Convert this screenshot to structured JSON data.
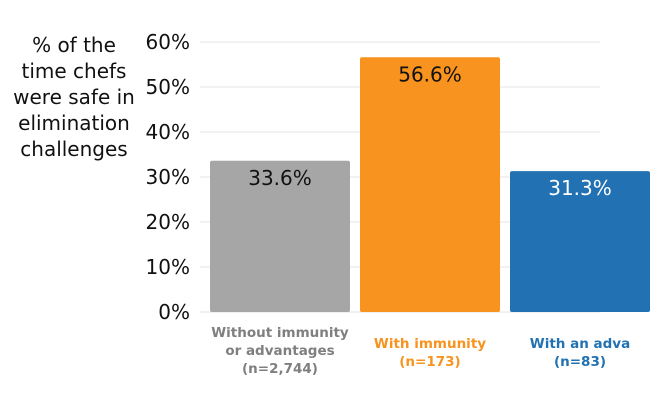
{
  "chart_data": {
    "type": "bar",
    "ylabel": "% of the\ntime chefs\nwere safe in\nelimination\nchallenges",
    "ylim": [
      0,
      60
    ],
    "yticks": [
      "0%",
      "10%",
      "20%",
      "30%",
      "40%",
      "50%",
      "60%"
    ],
    "ytick_values": [
      0,
      10,
      20,
      30,
      40,
      50,
      60
    ],
    "grid": true,
    "categories": [
      {
        "line1": "Without immunity",
        "line2": "or advantages",
        "n": "(n=2,744)"
      },
      {
        "line1": "With immunity",
        "line2": "",
        "n": "(n=173)"
      },
      {
        "line1": "With an adva",
        "line2": "",
        "n": "(n=83)"
      }
    ],
    "values": [
      33.6,
      56.6,
      31.3
    ],
    "data_labels": [
      "33.6%",
      "56.6%",
      "31.3%"
    ],
    "colors": [
      "#a6a6a6",
      "#f7931e",
      "#2271b3"
    ],
    "label_colors": [
      "#7f7f7f",
      "#f7931e",
      "#2271b3"
    ],
    "data_label_colors": [
      "#111111",
      "#111111",
      "#ffffff"
    ]
  }
}
